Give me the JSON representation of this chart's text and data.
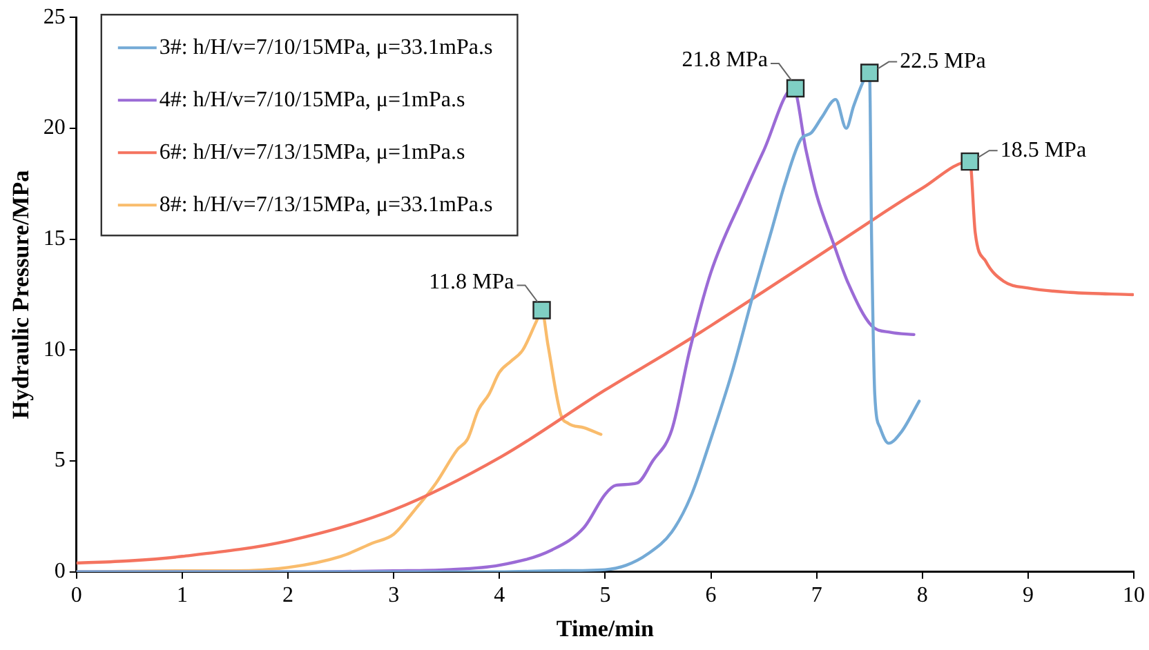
{
  "chart_data": {
    "type": "line",
    "xlabel": "Time/min",
    "ylabel": "Hydraulic Pressure/MPa",
    "xlim": [
      0,
      10
    ],
    "xticks": [
      0,
      1,
      2,
      3,
      4,
      5,
      6,
      7,
      8,
      9,
      10
    ],
    "ylim": [
      0,
      25
    ],
    "yticks": [
      0,
      5,
      10,
      15,
      20,
      25
    ],
    "grid": false,
    "legend": "top left",
    "marker": "none",
    "line_style": "solid",
    "series": [
      {
        "name": "3#: h/H/v=7/10/15MPa, μ=33.1mPa.s",
        "color": "#74aad6",
        "x": [
          0,
          1,
          2,
          3,
          4,
          4.5,
          5,
          5.2,
          5.4,
          5.63,
          5.81,
          6,
          6.2,
          6.4,
          6.58,
          6.7,
          6.85,
          6.95,
          7.05,
          7.18,
          7.28,
          7.35,
          7.45,
          7.5,
          7.52,
          7.55,
          7.6,
          7.68,
          7.8,
          7.97
        ],
        "values": [
          0,
          0,
          0,
          0,
          0,
          0.05,
          0.1,
          0.3,
          0.8,
          1.8,
          3.4,
          6,
          9,
          12.5,
          15.5,
          17.5,
          19.5,
          19.8,
          20.5,
          21.3,
          20,
          21,
          22.2,
          22.5,
          15,
          8,
          6.5,
          5.8,
          6.3,
          7.7
        ]
      },
      {
        "name": "4#: h/H/v=7/10/15MPa, μ=1mPa.s",
        "color": "#9b6bd6",
        "x": [
          0,
          1,
          2,
          3,
          3.5,
          4,
          4.5,
          4.8,
          5,
          5.1,
          5.3,
          5.45,
          5.63,
          5.8,
          6,
          6.31,
          6.5,
          6.78,
          6.9,
          7,
          7.16,
          7.3,
          7.52,
          7.7,
          7.92
        ],
        "values": [
          0,
          0,
          0,
          0.05,
          0.1,
          0.3,
          1,
          2,
          3.5,
          3.9,
          4,
          5,
          6.4,
          10,
          13.5,
          17,
          19,
          21.8,
          19,
          17,
          14.8,
          13,
          11.1,
          10.8,
          10.7
        ]
      },
      {
        "name": "6#: h/H/v=7/13/15MPa, μ=1mPa.s",
        "color": "#f4735f",
        "x": [
          0,
          0.5,
          1,
          2,
          3,
          4.02,
          5,
          5.63,
          6,
          7,
          8,
          8.45,
          8.5,
          8.6,
          8.77,
          9,
          9.4,
          9.99
        ],
        "values": [
          0.4,
          0.5,
          0.7,
          1.4,
          2.8,
          5.2,
          8.2,
          10,
          11.1,
          14.2,
          17.3,
          18.5,
          15.3,
          14,
          13.1,
          12.8,
          12.6,
          12.5
        ]
      },
      {
        "name": "8#: h/H/v=7/13/15MPa, μ=33.1mPa.s",
        "color": "#f9bc6c",
        "x": [
          0,
          1,
          1.5,
          2,
          2.5,
          2.8,
          3,
          3.2,
          3.4,
          3.6,
          3.7,
          3.8,
          3.9,
          4,
          4.11,
          4.22,
          4.35,
          4.4,
          4.46,
          4.58,
          4.65,
          4.8,
          4.96
        ],
        "values": [
          0,
          0.05,
          0.05,
          0.2,
          0.7,
          1.3,
          1.7,
          2.8,
          4,
          5.5,
          6,
          7.3,
          8,
          9,
          9.5,
          10,
          11.3,
          11.8,
          10.2,
          7.1,
          6.7,
          6.5,
          6.2
        ]
      }
    ],
    "annotations": [
      {
        "text": "11.8 MPa",
        "x": 4.4,
        "y": 11.8
      },
      {
        "text": "21.8 MPa",
        "x": 6.8,
        "y": 21.8
      },
      {
        "text": "22.5 MPa",
        "x": 7.5,
        "y": 22.5
      },
      {
        "text": "18.5 MPa",
        "x": 8.45,
        "y": 18.5
      }
    ]
  }
}
